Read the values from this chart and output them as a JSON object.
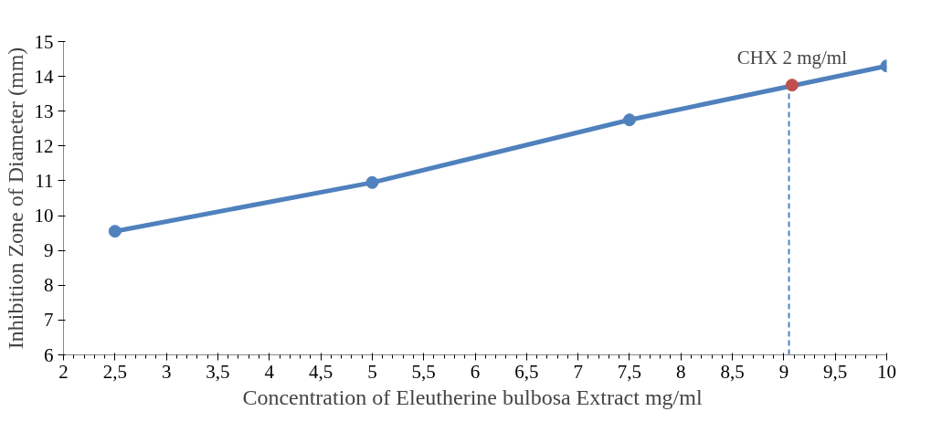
{
  "chart_data": {
    "type": "line",
    "xlabel": "Concentration of  Eleutherine bulbosa Extract mg/ml",
    "ylabel": "Inhibition Zone of Diameter (mm)",
    "xlim": [
      2,
      10
    ],
    "ylim": [
      6,
      15
    ],
    "xticks": [
      2,
      {
        "value": 2.5,
        "label": "2,5"
      },
      3,
      {
        "value": 3.5,
        "label": "3,5"
      },
      4,
      {
        "value": 4.5,
        "label": "4,5"
      },
      5,
      {
        "value": 5.5,
        "label": "5,5"
      },
      6,
      {
        "value": 6.5,
        "label": "6,5"
      },
      7,
      {
        "value": 7.5,
        "label": "7,5"
      },
      8,
      {
        "value": 8.5,
        "label": "8,5"
      },
      9,
      {
        "value": 9.5,
        "label": "9,5"
      },
      10
    ],
    "yticks": [
      6,
      7,
      8,
      9,
      10,
      11,
      12,
      13,
      14,
      15
    ],
    "grid": false,
    "marker": "circle",
    "series": [
      {
        "color": "#4f81bd",
        "x": [
          2.5,
          5,
          7.5,
          10
        ],
        "values": [
          9.55,
          10.95,
          12.75,
          14.3
        ]
      },
      {
        "type": "line",
        "color": "#4f81bd",
        "x": [
          9.05,
          9.05
        ],
        "values": [
          6,
          13.75
        ],
        "marker": "none",
        "line_style": "dashed"
      },
      {
        "type": "scatter",
        "color": "#c0504d",
        "x": [
          9.08
        ],
        "values": [
          13.75
        ]
      }
    ],
    "annotations": [
      {
        "text": "CHX 2 mg/ml",
        "x": 9.08,
        "y": 13.75
      }
    ]
  }
}
